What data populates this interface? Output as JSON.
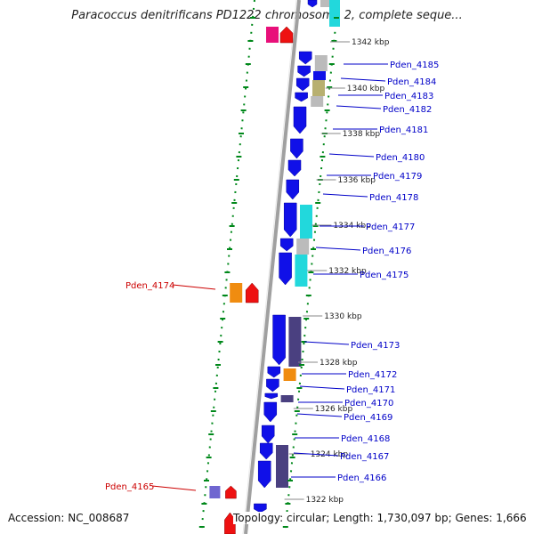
{
  "title": "Paracoccus denitrificans PD1222 chromosome 2, complete seque...",
  "accession": "Accession: NC_008687",
  "info": "Topology: circular; Length: 1,730,097 bp; Genes: 1,666",
  "colors": {
    "forward_cds": "#1010e8",
    "dark_feature": "#4a4080",
    "cyan_feature": "#22d8dc",
    "gray_feature": "#bbbbbb",
    "olive_feature": "#b8b070",
    "orange_feature": "#f08c10",
    "red_feature": "#ee1111",
    "pink_feature": "#e8107a",
    "gene_label_right": "#0000c8",
    "gene_label_left": "#cc0000",
    "tick_color": "#00881a",
    "backbone": "#a0a0a0"
  },
  "kbp_ticks": [
    "1342 kbp",
    "1340 kbp",
    "1338 kbp",
    "1336 kbp",
    "1334 kbp",
    "1332 kbp",
    "1330 kbp",
    "1328 kbp",
    "1326 kbp",
    "1324 kbp",
    "1322 kbp"
  ],
  "genes_right": [
    "Pden_4185",
    "Pden_4184",
    "Pden_4183",
    "Pden_4182",
    "Pden_4181",
    "Pden_4180",
    "Pden_4179",
    "Pden_4178",
    "Pden_4177",
    "Pden_4176",
    "Pden_4175",
    "Pden_4173",
    "Pden_4172",
    "Pden_4171",
    "Pden_4170",
    "Pden_4169",
    "Pden_4168",
    "Pden_4167",
    "Pden_4166"
  ],
  "genes_left": [
    "Pden_4174",
    "Pden_4165"
  ]
}
